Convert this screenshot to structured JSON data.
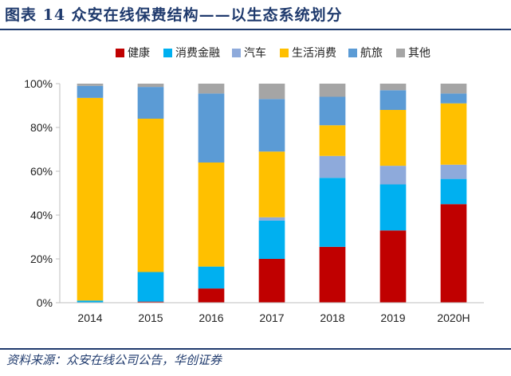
{
  "figure": {
    "title": "图表 14   众安在线保费结构——以生态系统划分",
    "source": "资料来源：众安在线公司公告，华创证券"
  },
  "chart_data": {
    "type": "bar",
    "stacked": true,
    "categories": [
      "2014",
      "2015",
      "2016",
      "2017",
      "2018",
      "2019",
      "2020H"
    ],
    "ylim": [
      0,
      100
    ],
    "yticks": [
      "0%",
      "20%",
      "40%",
      "60%",
      "80%",
      "100%"
    ],
    "legend_position": "top",
    "grid": false,
    "series": [
      {
        "name": "健康",
        "color": "#c00000",
        "values": [
          0,
          0.5,
          6.5,
          20,
          25.5,
          33,
          45
        ]
      },
      {
        "name": "消费金融",
        "color": "#00b0f0",
        "values": [
          1,
          13.5,
          10,
          17.5,
          31.5,
          21,
          11.5
        ]
      },
      {
        "name": "汽车",
        "color": "#8eaadb",
        "values": [
          0,
          0,
          0,
          1.5,
          10,
          8.5,
          6.5
        ]
      },
      {
        "name": "生活消费",
        "color": "#ffc000",
        "values": [
          92.5,
          70,
          47.5,
          30,
          14,
          25.5,
          28
        ]
      },
      {
        "name": "航旅",
        "color": "#5b9bd5",
        "values": [
          5.5,
          14.5,
          31.5,
          24,
          13,
          9,
          4.5
        ]
      },
      {
        "name": "其他",
        "color": "#a5a5a5",
        "values": [
          1,
          1.5,
          4.5,
          7,
          6,
          3,
          4.5
        ]
      }
    ]
  }
}
